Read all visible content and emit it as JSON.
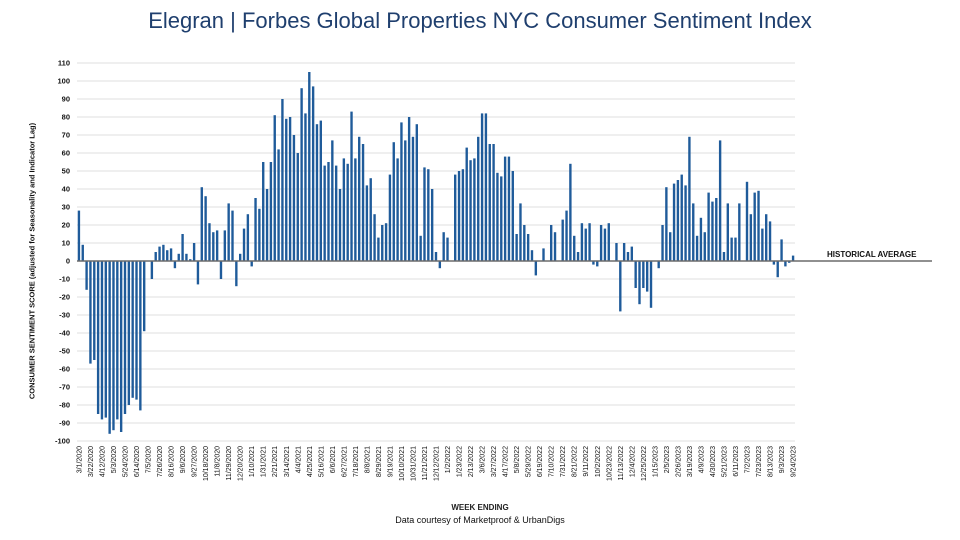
{
  "title_part1": "Elegran | Forbes Global Properties",
  "title_part2": " NYC Consumer Sentiment Index",
  "chart_data": {
    "type": "bar",
    "title": "Elegran | Forbes Global Properties NYC Consumer Sentiment Index",
    "xlabel": "WEEK ENDING",
    "ylabel": "CONSUMER SENTIMENT SCORE (adjusted for Seasonality and Indicator Lag)",
    "ylim": [
      -100,
      110
    ],
    "yticks": [
      -100,
      -90,
      -80,
      -70,
      -60,
      -50,
      -40,
      -30,
      -20,
      -10,
      0,
      10,
      20,
      30,
      40,
      50,
      60,
      70,
      80,
      90,
      100,
      110
    ],
    "grid": true,
    "bar_color": "#1f5b9a",
    "reference_line": {
      "value": 0,
      "label": "HISTORICAL AVERAGE",
      "color": "#6b6b6b"
    },
    "source": "Data courtesy of Marketproof & UrbanDigs",
    "x_tick_labels": [
      "3/1/2020",
      "3/22/2020",
      "4/12/2020",
      "5/3/2020",
      "5/24/2020",
      "6/14/2020",
      "7/5/2020",
      "7/26/2020",
      "8/16/2020",
      "9/6/2020",
      "9/27/2020",
      "10/18/2020",
      "11/8/2020",
      "11/29/2020",
      "12/20/2020",
      "1/10/2021",
      "1/31/2021",
      "2/21/2021",
      "3/14/2021",
      "4/4/2021",
      "4/25/2021",
      "5/16/2021",
      "6/6/2021",
      "6/27/2021",
      "7/18/2021",
      "8/8/2021",
      "8/29/2021",
      "9/19/2021",
      "10/10/2021",
      "10/31/2021",
      "11/21/2021",
      "12/12/2021",
      "1/2/2022",
      "1/23/2022",
      "2/13/2022",
      "3/6/2022",
      "3/27/2022",
      "4/17/2022",
      "5/8/2022",
      "5/29/2022",
      "6/19/2022",
      "7/10/2022",
      "7/31/2022",
      "8/21/2022",
      "9/11/2022",
      "10/2/2022",
      "10/23/2022",
      "11/13/2022",
      "12/4/2022",
      "12/25/2022",
      "1/15/2023",
      "2/5/2023",
      "2/26/2023",
      "3/19/2023",
      "4/9/2023",
      "4/30/2023",
      "5/21/2023",
      "6/11/2023",
      "7/2/2023",
      "7/23/2023",
      "8/13/2023",
      "9/3/2023",
      "9/24/2023"
    ],
    "tick_every": 3,
    "values": [
      28,
      9,
      -16,
      -57,
      -55,
      -85,
      -88,
      -87,
      -96,
      -94,
      -88,
      -95,
      -85,
      -80,
      -76,
      -77,
      -83,
      -39,
      0,
      -10,
      5,
      8,
      9,
      6,
      7,
      -4,
      4,
      15,
      4,
      1,
      10,
      -13,
      41,
      36,
      21,
      16,
      17,
      -10,
      17,
      32,
      28,
      -14,
      4,
      18,
      26,
      -3,
      35,
      29,
      55,
      40,
      55,
      81,
      62,
      90,
      79,
      80,
      70,
      60,
      96,
      82,
      105,
      97,
      76,
      78,
      53,
      55,
      67,
      53,
      40,
      57,
      54,
      83,
      57,
      69,
      65,
      42,
      46,
      26,
      13,
      20,
      21,
      48,
      66,
      57,
      77,
      67,
      80,
      69,
      76,
      14,
      52,
      51,
      40,
      5,
      -4,
      16,
      13,
      0,
      48,
      50,
      51,
      63,
      56,
      57,
      69,
      82,
      82,
      65,
      65,
      49,
      47,
      58,
      58,
      50,
      15,
      32,
      20,
      15,
      6,
      -8,
      0,
      7,
      0,
      20,
      16,
      0,
      23,
      28,
      54,
      14,
      5,
      21,
      18,
      21,
      -2,
      -3,
      20,
      18,
      21,
      0,
      10,
      -28,
      10,
      5,
      8,
      -15,
      -24,
      -15,
      -17,
      -26,
      0,
      -4,
      20,
      41,
      16,
      43,
      45,
      48,
      42,
      69,
      32,
      14,
      24,
      16,
      38,
      33,
      35,
      67,
      5,
      32,
      13,
      13,
      32,
      0,
      44,
      26,
      38,
      39,
      18,
      26,
      22,
      -2,
      -9,
      12,
      -3,
      -1,
      3
    ]
  }
}
